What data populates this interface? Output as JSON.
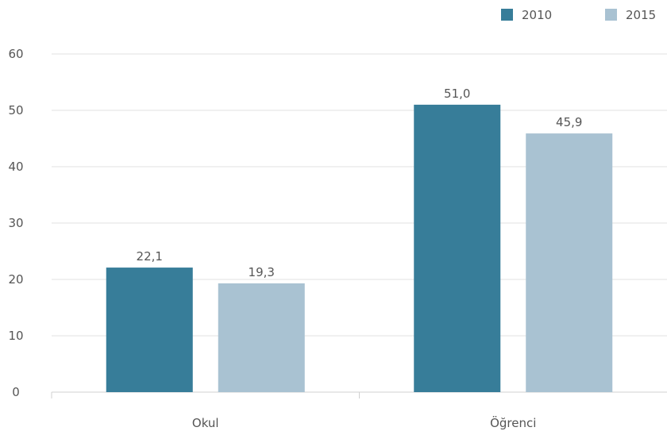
{
  "chart_data": {
    "type": "bar",
    "categories": [
      "Okul",
      "Öğrenci"
    ],
    "series": [
      {
        "name": "2010",
        "values": [
          22.1,
          51.0
        ],
        "labels": [
          "22,1",
          "51,0"
        ],
        "color": "#377d99"
      },
      {
        "name": "2015",
        "values": [
          19.3,
          45.9
        ],
        "labels": [
          "19,3",
          "45,9"
        ],
        "color": "#a9c2d2"
      }
    ],
    "ylim": [
      0,
      60
    ],
    "yticks": [
      0,
      10,
      20,
      30,
      40,
      50,
      60
    ],
    "grid": true,
    "legend_position": "top-right",
    "title": "",
    "xlabel": "",
    "ylabel": ""
  }
}
